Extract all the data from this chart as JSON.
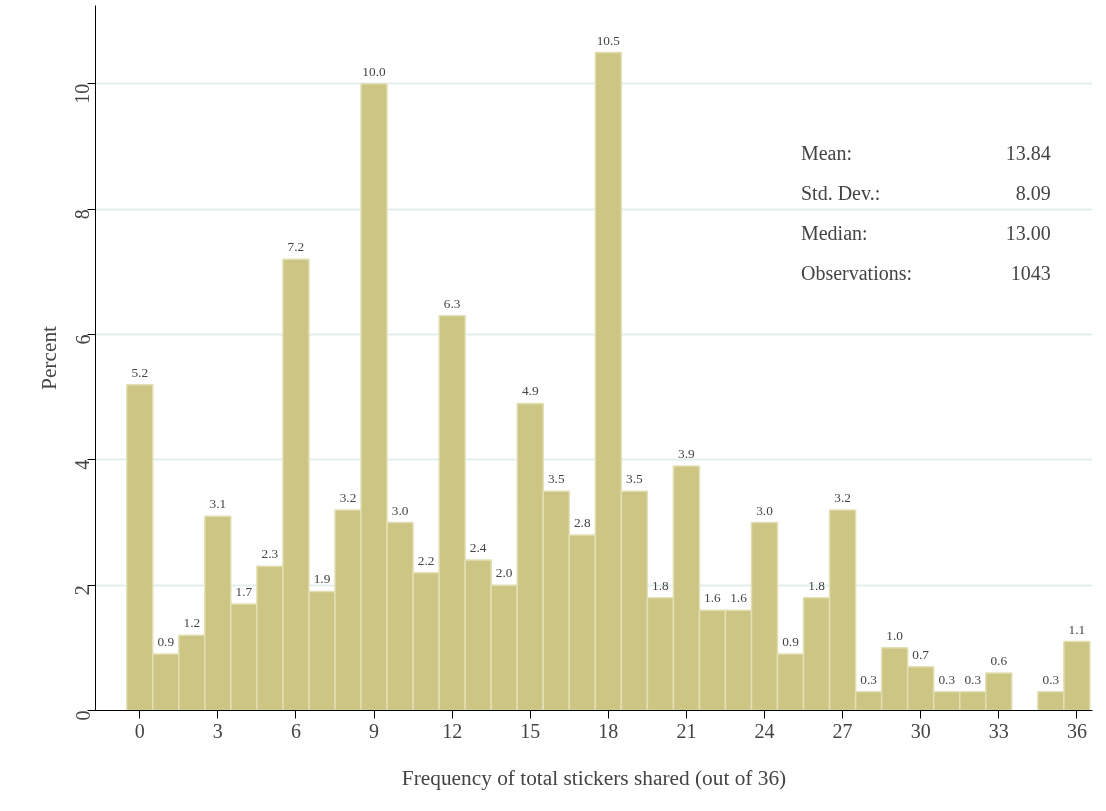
{
  "chart_data": {
    "type": "histogram",
    "xlabel": "Frequency of total stickers shared (out of 36)",
    "ylabel": "Percent",
    "bins": [
      -0.5,
      0.5,
      1.5,
      2.5,
      3.5,
      4.5,
      5.5,
      6.5,
      7.5,
      8.5,
      9.5,
      10.5,
      11.5,
      12.5,
      13.5,
      14.5,
      15.5,
      16.5,
      17.5,
      18.5,
      19.5,
      20.5,
      21.5,
      22.5,
      23.5,
      24.5,
      25.5,
      26.5,
      27.5,
      28.5,
      29.5,
      30.5,
      31.5,
      32.5,
      33.5,
      34.5,
      35.5,
      36.5
    ],
    "values": [
      5.2,
      0.9,
      1.2,
      3.1,
      1.7,
      2.3,
      7.2,
      1.9,
      3.2,
      10.0,
      3.0,
      2.2,
      6.3,
      2.4,
      2.0,
      4.9,
      3.5,
      2.8,
      10.5,
      3.5,
      1.8,
      3.9,
      1.6,
      1.6,
      3.0,
      0.9,
      1.8,
      3.2,
      0.3,
      1.0,
      0.7,
      0.3,
      0.3,
      0.6,
      null,
      0.3,
      1.1
    ],
    "value_labels": [
      "5.2",
      "0.9",
      "1.2",
      "3.1",
      "1.7",
      "2.3",
      "7.2",
      "1.9",
      "3.2",
      "10.0",
      "3.0",
      "2.2",
      "6.3",
      "2.4",
      "2.0",
      "4.9",
      "3.5",
      "2.8",
      "10.5",
      "3.5",
      "1.8",
      "3.9",
      "1.6",
      "1.6",
      "3.0",
      "0.9",
      "1.8",
      "3.2",
      "0.3",
      "1.0",
      "0.7",
      "0.3",
      "0.3",
      "0.6",
      null,
      "0.3",
      "1.1"
    ],
    "color": "#cdc583",
    "xlim": [
      -1.7,
      36.6
    ],
    "ylim": [
      0,
      11.25
    ],
    "xticks": [
      0,
      3,
      6,
      9,
      12,
      15,
      18,
      21,
      24,
      27,
      30,
      33,
      36
    ],
    "yticks": [
      0,
      2,
      4,
      6,
      8,
      10
    ],
    "grid": "y",
    "annotations": [
      "Mean:",
      "13.84",
      "Std. Dev.:",
      "8.09",
      "Median:",
      "13.00",
      "Observations:",
      "1043"
    ]
  }
}
